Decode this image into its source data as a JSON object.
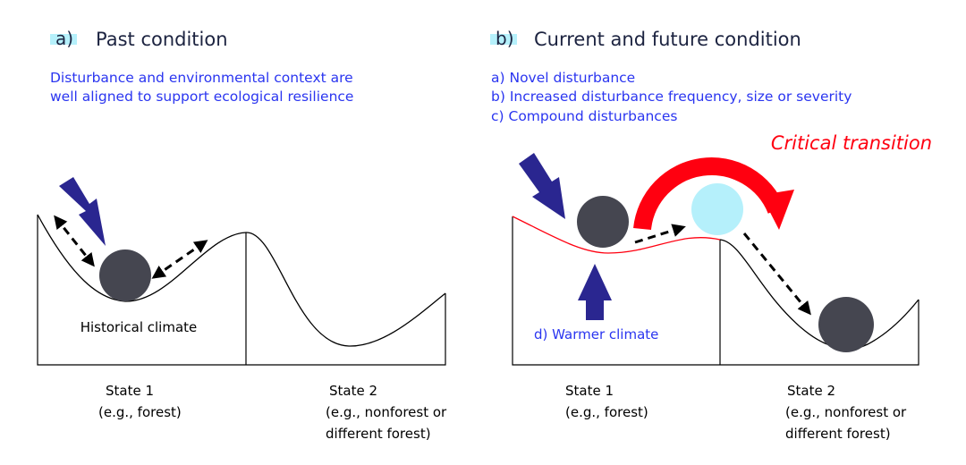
{
  "panel_a": {
    "label": "a)",
    "title": "Past condition",
    "description": [
      "Disturbance and environmental context are",
      "well aligned to support ecological resilience"
    ],
    "climate_label": "Historical climate",
    "state1": {
      "name": "State 1",
      "desc": [
        "(e.g., forest)"
      ]
    },
    "state2": {
      "name": "State 2",
      "desc": [
        "(e.g., nonforest or",
        "different forest)"
      ]
    }
  },
  "panel_b": {
    "label": "b)",
    "title": "Current and future condition",
    "drivers": [
      "a) Novel disturbance",
      "b) Increased disturbance frequency, size or severity",
      "c) Compound disturbances"
    ],
    "transition_label": "Critical transition",
    "climate_label": "d) Warmer climate",
    "state1": {
      "name": "State 1",
      "desc": [
        "(e.g., forest)"
      ]
    },
    "state2": {
      "name": "State 2",
      "desc": [
        "(e.g., nonforest or",
        "different forest)"
      ]
    }
  },
  "colors": {
    "ball": "#454650",
    "ball_light": "#b5f0fb",
    "arrow_blue": "#2a2690",
    "transition_red": "#ff0010",
    "text_blue": "#2a35f0",
    "highlight": "#b5f0fb"
  }
}
